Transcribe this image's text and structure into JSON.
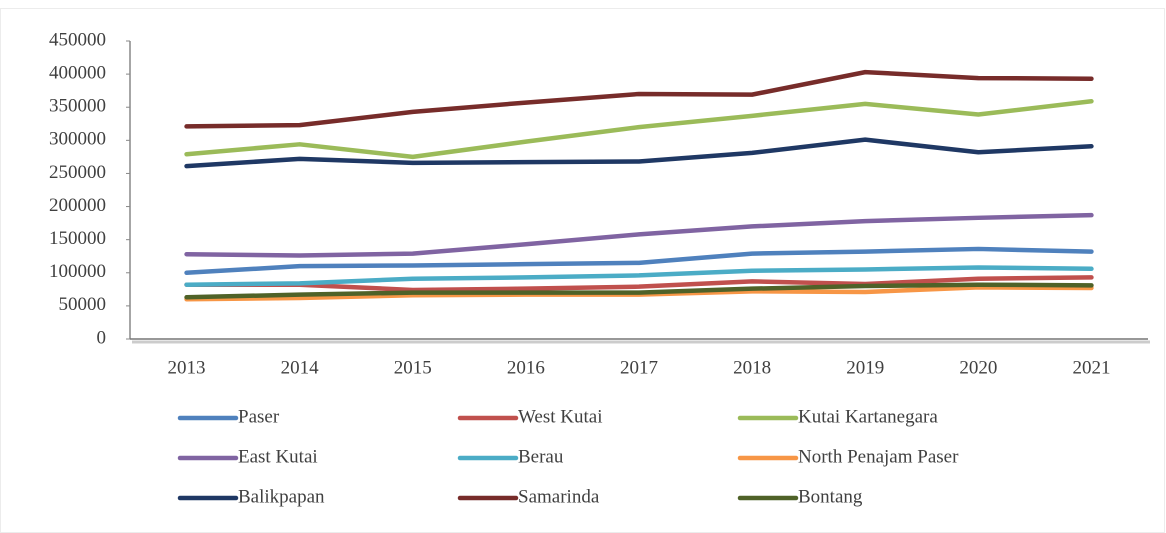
{
  "chart_data": {
    "type": "line",
    "x": [
      2013,
      2014,
      2015,
      2016,
      2017,
      2018,
      2019,
      2020,
      2021
    ],
    "ylim": [
      0,
      450000
    ],
    "yticks": [
      0,
      50000,
      100000,
      150000,
      200000,
      250000,
      300000,
      350000,
      400000,
      450000
    ],
    "grid": false,
    "legend": "bottom",
    "series": [
      {
        "name": "Paser",
        "color": "#4f81bd",
        "values": [
          100000,
          110000,
          111000,
          113000,
          115000,
          129000,
          132000,
          136000,
          132000
        ]
      },
      {
        "name": "West Kutai",
        "color": "#c0504d",
        "values": [
          82000,
          82000,
          74000,
          76000,
          79000,
          87000,
          83000,
          91000,
          93000
        ]
      },
      {
        "name": "Kutai Kartanegara",
        "color": "#9bbb59",
        "values": [
          279000,
          294000,
          275000,
          298000,
          320000,
          337000,
          355000,
          339000,
          359000
        ]
      },
      {
        "name": "East Kutai",
        "color": "#8064a2",
        "values": [
          128000,
          126000,
          129000,
          143000,
          158000,
          170000,
          178000,
          183000,
          187000
        ]
      },
      {
        "name": "Berau",
        "color": "#4bacc6",
        "values": [
          82000,
          84000,
          91000,
          93000,
          96000,
          103000,
          105000,
          108000,
          106000
        ]
      },
      {
        "name": "North Penajam Paser",
        "color": "#f79646",
        "values": [
          60000,
          62000,
          66000,
          67000,
          67000,
          72000,
          71000,
          78000,
          77000
        ]
      },
      {
        "name": "Balikpapan",
        "color": "#1f3864",
        "values": [
          261000,
          272000,
          266000,
          267000,
          268000,
          281000,
          301000,
          282000,
          291000
        ]
      },
      {
        "name": "Samarinda",
        "color": "#772c2a",
        "values": [
          321000,
          323000,
          343000,
          357000,
          370000,
          369000,
          403000,
          394000,
          393000
        ]
      },
      {
        "name": "Bontang",
        "color": "#4f6228",
        "values": [
          63000,
          67000,
          70000,
          70000,
          70000,
          76000,
          80000,
          82000,
          81000
        ]
      }
    ]
  }
}
